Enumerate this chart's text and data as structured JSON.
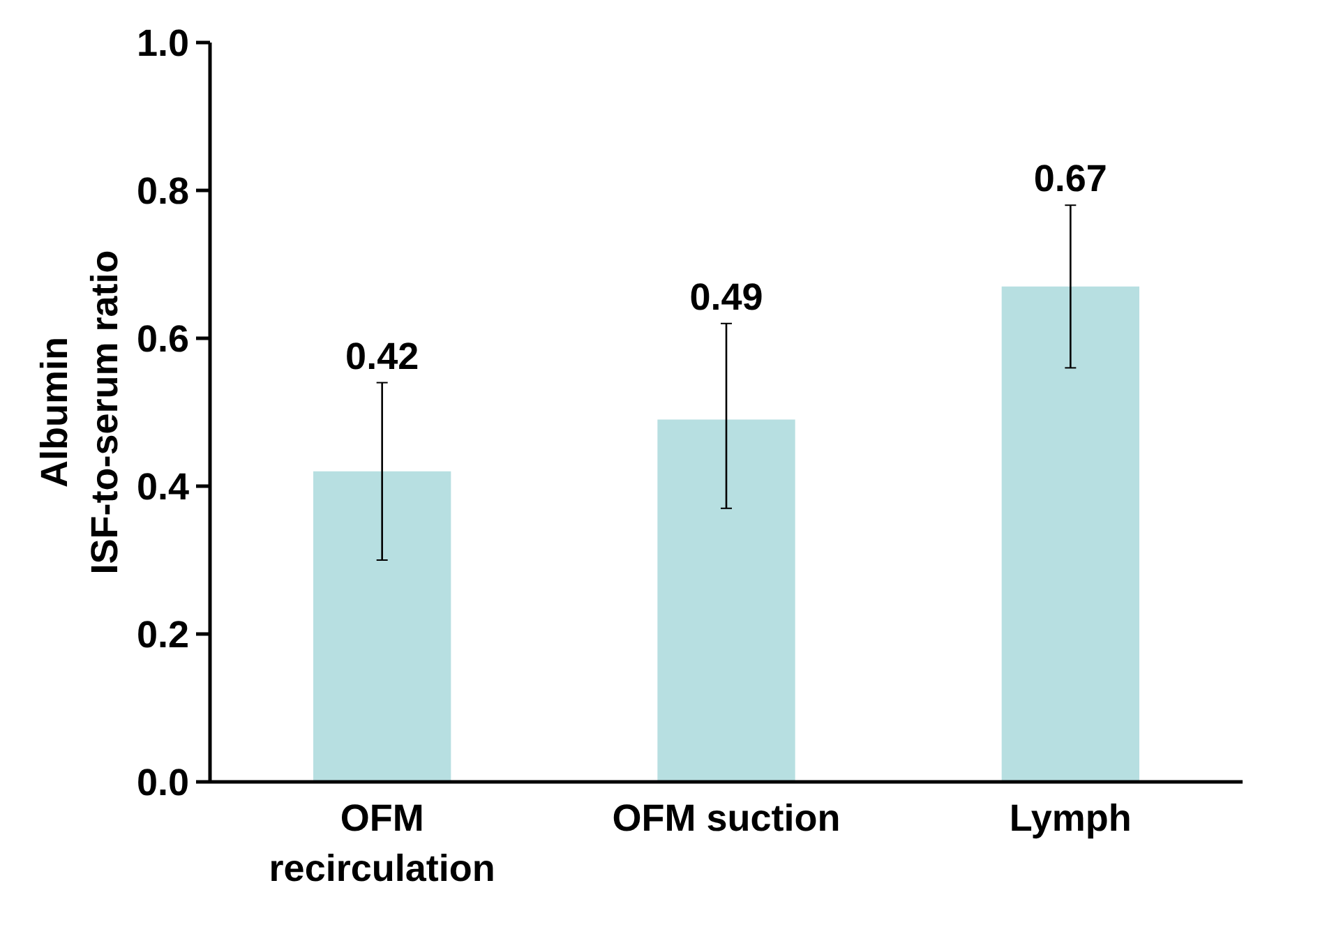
{
  "chart_data": {
    "type": "bar",
    "ylabel": "Albumin ISF-to-serum ratio",
    "categories": [
      "OFM recirculation",
      "OFM suction",
      "Lymph"
    ],
    "values": [
      0.42,
      0.49,
      0.67
    ],
    "color": "#b7dfe1",
    "errors": [
      [
        0.3,
        0.54
      ],
      [
        0.37,
        0.62
      ],
      [
        0.56,
        0.78
      ]
    ],
    "value_labels": [
      "0.42",
      "0.49",
      "0.67"
    ],
    "ylim": [
      0,
      1.0
    ],
    "yticks": [
      {
        "value": 0,
        "label": "0.0"
      },
      {
        "value": 0.2,
        "label": "0.2"
      },
      {
        "value": 0.4,
        "label": "0.4"
      },
      {
        "value": 0.6,
        "label": "0.6"
      },
      {
        "value": 0.8,
        "label": "0.8"
      },
      {
        "value": 1.0,
        "label": "1.0"
      }
    ],
    "grid": false
  }
}
